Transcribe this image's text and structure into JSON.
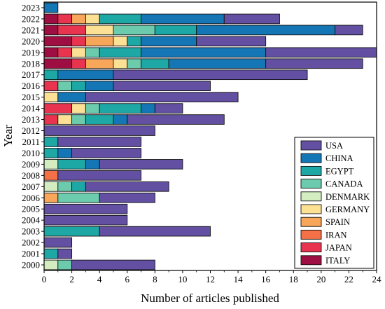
{
  "chart_data": {
    "type": "bar",
    "orientation": "horizontal",
    "stacked": true,
    "xlabel": "Number of articles published",
    "ylabel": "Year",
    "xlim": [
      0,
      24
    ],
    "xticks": [
      0,
      2,
      4,
      6,
      8,
      10,
      12,
      14,
      16,
      18,
      20,
      22,
      24
    ],
    "grid": false,
    "legend_position": "bottom-right",
    "categories": [
      "2000",
      "2001",
      "2002",
      "2003",
      "2004",
      "2005",
      "2006",
      "2007",
      "2008",
      "2009",
      "2010",
      "2011",
      "2012",
      "2013",
      "2014",
      "2015",
      "2016",
      "2017",
      "2018",
      "2019",
      "2020",
      "2021",
      "2022",
      "2023"
    ],
    "series": [
      {
        "name": "ITALY",
        "color": "#9e0e43",
        "values": [
          0,
          0,
          0,
          0,
          0,
          0,
          0,
          0,
          0,
          0,
          0,
          0,
          0,
          0,
          0,
          0,
          0,
          0,
          2,
          1,
          2,
          1,
          1,
          0
        ]
      },
      {
        "name": "JAPAN",
        "color": "#e8344f",
        "values": [
          0,
          0,
          0,
          0,
          0,
          0,
          0,
          0,
          0,
          0,
          0,
          0,
          0,
          1,
          2,
          0,
          1,
          0,
          1,
          1,
          1,
          2,
          1,
          0
        ]
      },
      {
        "name": "IRAN",
        "color": "#f47147",
        "values": [
          0,
          0,
          0,
          0,
          0,
          0,
          0,
          0,
          1,
          0,
          0,
          0,
          0,
          0,
          0,
          0,
          0,
          0,
          0,
          0,
          0,
          0,
          0,
          0
        ]
      },
      {
        "name": "SPAIN",
        "color": "#f8a65a",
        "values": [
          0,
          0,
          0,
          0,
          0,
          0,
          1,
          0,
          0,
          0,
          0,
          0,
          0,
          0,
          0,
          0,
          0,
          0,
          2,
          0,
          2,
          0,
          1,
          0
        ]
      },
      {
        "name": "GERMANY",
        "color": "#fce195",
        "values": [
          0,
          0,
          0,
          0,
          0,
          0,
          0,
          0,
          0,
          0,
          0,
          0,
          0,
          1,
          1,
          1,
          0,
          0,
          1,
          1,
          1,
          2,
          1,
          0
        ]
      },
      {
        "name": "DENMARK",
        "color": "#d3edc0",
        "values": [
          1,
          0,
          0,
          0,
          0,
          0,
          0,
          1,
          0,
          1,
          0,
          0,
          0,
          0,
          0,
          0,
          0,
          0,
          0,
          0,
          0,
          0,
          0,
          0
        ]
      },
      {
        "name": "CANADA",
        "color": "#6ccbad",
        "values": [
          1,
          0,
          0,
          0,
          0,
          0,
          3,
          1,
          0,
          0,
          0,
          0,
          0,
          1,
          1,
          0,
          1,
          0,
          1,
          1,
          0,
          3,
          0,
          0
        ]
      },
      {
        "name": "EGYPT",
        "color": "#1da8a6",
        "values": [
          0,
          1,
          0,
          4,
          0,
          0,
          0,
          1,
          0,
          2,
          1,
          1,
          0,
          2,
          3,
          0,
          1,
          1,
          2,
          3,
          1,
          3,
          3,
          0
        ]
      },
      {
        "name": "CHINA",
        "color": "#1576b6",
        "values": [
          0,
          0,
          0,
          0,
          0,
          0,
          0,
          0,
          0,
          1,
          1,
          0,
          0,
          1,
          1,
          2,
          2,
          4,
          7,
          9,
          4,
          10,
          6,
          1
        ]
      },
      {
        "name": "USA",
        "color": "#6350a2",
        "values": [
          6,
          1,
          2,
          8,
          6,
          6,
          4,
          6,
          6,
          6,
          5,
          6,
          8,
          7,
          2,
          11,
          7,
          14,
          7,
          8,
          5,
          2,
          4,
          0
        ]
      }
    ]
  }
}
